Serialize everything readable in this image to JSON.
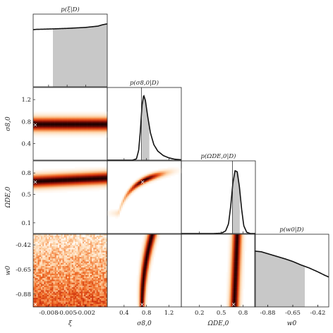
{
  "chart_data": {
    "type": "corner",
    "parameters": [
      {
        "key": "xi",
        "label": "ξ",
        "x_range": [
          -0.0105,
          0.0015
        ],
        "x_ticks": [
          -0.008,
          -0.005,
          -0.002
        ],
        "x_tick_labels": [
          "-0.008",
          "-0.005",
          "-0.002"
        ],
        "y_ticks": [],
        "y_tick_labels": []
      },
      {
        "key": "sigma",
        "label": "σ8,0",
        "range": [
          0.1,
          1.42
        ],
        "ticks": [
          0.4,
          0.8,
          1.2
        ],
        "tick_labels": [
          "0.4",
          "0.8",
          "1.2"
        ]
      },
      {
        "key": "omega",
        "label": "ΩDE,0",
        "range": [
          -0.05,
          0.97
        ],
        "ticks": [
          0.2,
          0.5,
          0.8
        ],
        "tick_labels": [
          "0.2",
          "0.5",
          "0.8"
        ],
        "y_ticks": [
          0.1,
          0.5,
          0.8
        ],
        "y_tick_labels": [
          "0.1",
          "0.5",
          "0.8"
        ]
      },
      {
        "key": "w0",
        "label": "w0",
        "range": [
          -1.0,
          -0.32
        ],
        "ticks": [
          -0.88,
          -0.65,
          -0.42
        ],
        "tick_labels": [
          "-0.88",
          "-0.65",
          "-0.42"
        ]
      }
    ],
    "diagonal": [
      {
        "title": "p(ξ|D)",
        "x": [
          -0.0105,
          -0.01,
          -0.009,
          -0.008,
          -0.007,
          -0.006,
          -0.005,
          -0.004,
          -0.003,
          -0.002,
          -0.001,
          0.0,
          0.0007,
          0.0015
        ],
        "y": [
          0.88,
          0.885,
          0.887,
          0.89,
          0.893,
          0.897,
          0.9,
          0.905,
          0.91,
          0.915,
          0.925,
          0.935,
          0.955,
          0.97
        ],
        "shade": [
          -0.0073,
          0.0015
        ],
        "marker": null
      },
      {
        "title": "p(σ8,0|D)",
        "x": [
          0.1,
          0.4,
          0.55,
          0.62,
          0.66,
          0.69,
          0.72,
          0.75,
          0.78,
          0.82,
          0.87,
          0.93,
          1.0,
          1.1,
          1.2,
          1.3,
          1.42
        ],
        "y": [
          0.0,
          0.0,
          0.0,
          0.02,
          0.15,
          0.45,
          0.85,
          1.0,
          0.92,
          0.68,
          0.42,
          0.24,
          0.14,
          0.07,
          0.035,
          0.015,
          0.006
        ],
        "shade": [
          0.72,
          0.85
        ],
        "marker": 0.71
      },
      {
        "title": "p(ΩDE,0|D)",
        "x": [
          -0.05,
          0.4,
          0.5,
          0.56,
          0.6,
          0.63,
          0.66,
          0.69,
          0.72,
          0.75,
          0.78,
          0.81,
          0.85,
          0.9,
          0.97
        ],
        "y": [
          0.0,
          0.0,
          0.005,
          0.04,
          0.15,
          0.42,
          0.78,
          0.97,
          0.95,
          0.72,
          0.38,
          0.12,
          0.02,
          0.0,
          0.0
        ],
        "shade": [
          0.655,
          0.755
        ],
        "marker": 0.655
      },
      {
        "title": "p(w0|D)",
        "x": [
          -1.0,
          -0.94,
          -0.88,
          -0.8,
          -0.72,
          -0.65,
          -0.58,
          -0.5,
          -0.42,
          -0.36,
          -0.32
        ],
        "y": [
          0.86,
          0.85,
          0.82,
          0.78,
          0.74,
          0.7,
          0.65,
          0.6,
          0.54,
          0.49,
          0.46
        ],
        "shade": [
          -1.0,
          -0.54
        ],
        "marker": null
      }
    ],
    "joint": [
      {
        "row": "sigma",
        "col": "xi",
        "style": "band",
        "center": 0.75,
        "width": 0.14,
        "slope": 0.0,
        "marker": [
          -0.0105,
          0.75
        ]
      },
      {
        "row": "omega",
        "col": "xi",
        "style": "band",
        "center": 0.68,
        "width": 0.1,
        "slope": 4.0,
        "marker": [
          -0.0105,
          0.68
        ]
      },
      {
        "row": "omega",
        "col": "sigma",
        "style": "curve",
        "marker": [
          0.73,
          0.68
        ]
      },
      {
        "row": "w0",
        "col": "xi",
        "style": "noise",
        "marker": [
          -0.0105,
          -1.0
        ]
      },
      {
        "row": "w0",
        "col": "sigma",
        "style": "vcurve",
        "marker": [
          0.72,
          -1.0
        ]
      },
      {
        "row": "w0",
        "col": "omega",
        "style": "vband",
        "center": 0.7,
        "width": 0.07,
        "marker": [
          0.67,
          -1.0
        ]
      }
    ]
  }
}
